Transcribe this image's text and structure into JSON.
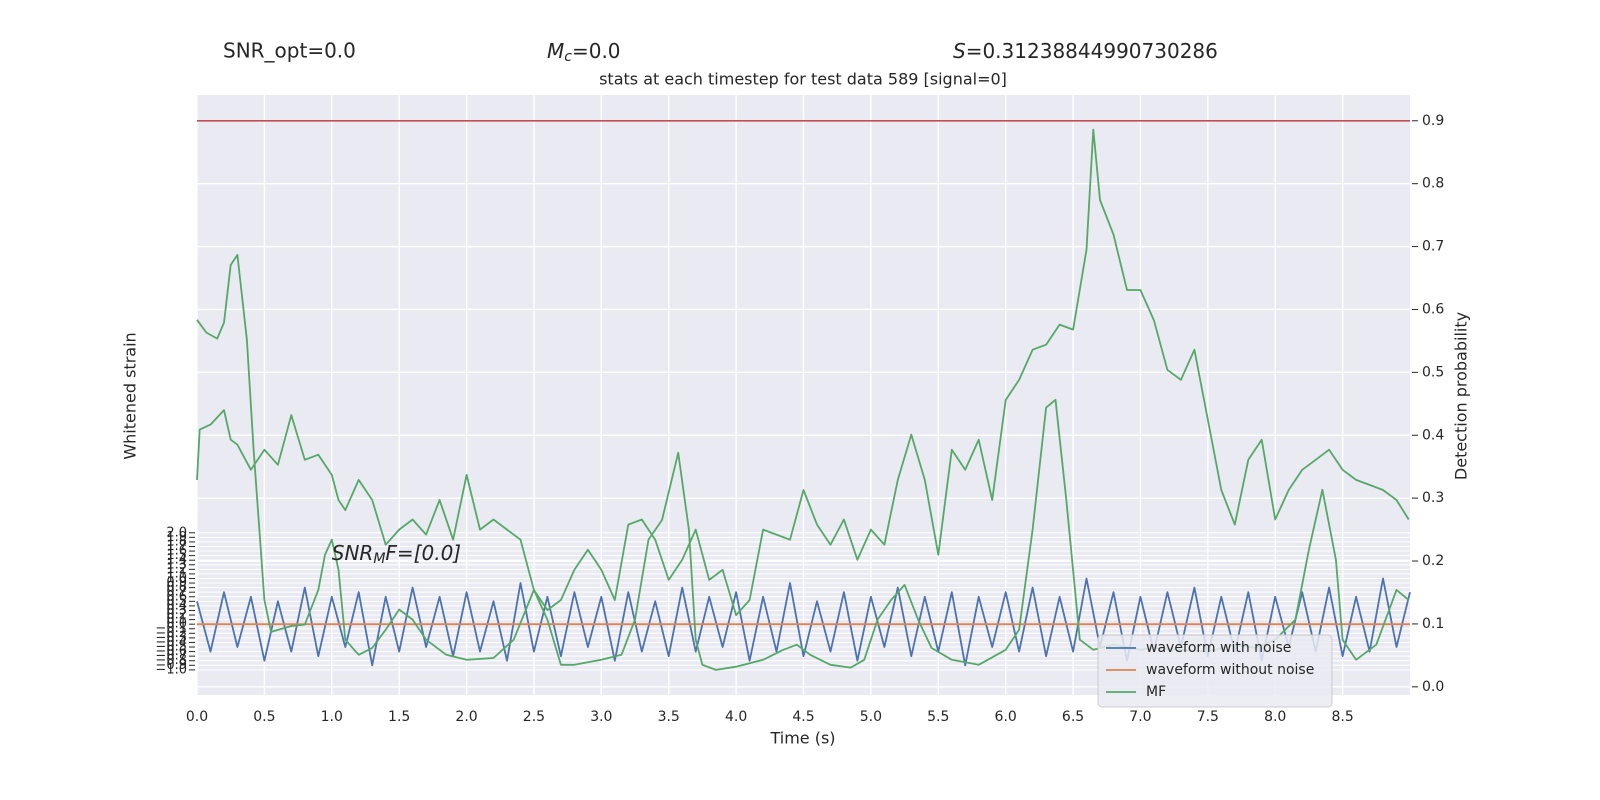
{
  "chart_data": {
    "type": "line",
    "header": [
      {
        "text": "SNR_opt=0.0"
      },
      {
        "symbol": "M",
        "sub": "c",
        "text": "=0.0"
      },
      {
        "symbol": "S",
        "text": "=0.31238844990730286"
      }
    ],
    "title": "stats at each timestep for test data 589 [signal=0]",
    "xlabel": "Time (s)",
    "ylabel": "Whitened strain",
    "y2label": "Detection probability",
    "annotation": {
      "symbol": "SNR",
      "sub": "M",
      "text": "F=[0.0]",
      "x": 1.0,
      "y": 1.54
    },
    "xlim": [
      0,
      9.0
    ],
    "ylim": [
      -1.55,
      11.58
    ],
    "y2lim": [
      -0.013,
      0.941
    ],
    "xticks": [
      {
        "value": 0,
        "label": "0.0"
      },
      0.5,
      {
        "value": 1,
        "label": "1.0"
      },
      1.5,
      {
        "value": 2,
        "label": "2.0"
      },
      2.5,
      {
        "value": 3,
        "label": "3.0"
      },
      3.5,
      {
        "value": 4,
        "label": "4.0"
      },
      4.5,
      {
        "value": 5,
        "label": "5.0"
      },
      5.5,
      {
        "value": 6,
        "label": "6.0"
      },
      6.5,
      {
        "value": 7,
        "label": "7.0"
      },
      7.5,
      {
        "value": 8,
        "label": "8.0"
      },
      8.5
    ],
    "yticks": [
      {
        "value": -1,
        "label": "−1.0"
      },
      {
        "value": -0.9,
        "label": "−0.9"
      },
      {
        "value": -0.8,
        "label": "−0.8"
      },
      {
        "value": -0.7,
        "label": "−0.7"
      },
      {
        "value": -0.6,
        "label": "−0.6"
      },
      {
        "value": -0.5,
        "label": "−0.5"
      },
      {
        "value": -0.4,
        "label": "−0.4"
      },
      {
        "value": -0.3,
        "label": "−0.3"
      },
      {
        "value": -0.2,
        "label": "−0.2"
      },
      {
        "value": -0.1,
        "label": "−0.1"
      },
      {
        "value": 0,
        "label": "0.0"
      },
      0.1,
      0.2,
      0.3,
      0.4,
      0.5,
      0.6,
      0.7,
      0.8,
      0.9,
      {
        "value": 1,
        "label": "1.0"
      },
      1.1,
      1.2,
      1.3,
      1.4,
      1.5,
      1.6,
      1.7,
      1.8,
      1.9,
      {
        "value": 2,
        "label": "2.0"
      }
    ],
    "y2ticks": [
      {
        "value": 0,
        "label": "0.0"
      },
      0.1,
      0.2,
      0.3,
      0.4,
      0.5,
      0.6,
      0.7,
      0.8,
      0.9
    ],
    "grid": true,
    "legend": "lower right",
    "series": [
      {
        "name": "waveform with noise",
        "color": "#4c72b0",
        "x": [
          0,
          0.1,
          0.2,
          0.3,
          0.4,
          0.5,
          0.6,
          0.7,
          0.8,
          0.9,
          1,
          1.1,
          1.2,
          1.3,
          1.4,
          1.5,
          1.6,
          1.7,
          1.8,
          1.9,
          2,
          2.1,
          2.2,
          2.3,
          2.4,
          2.5,
          2.6,
          2.7,
          2.8,
          2.9,
          3,
          3.1,
          3.2,
          3.3,
          3.4,
          3.5,
          3.6,
          3.7,
          3.8,
          3.9,
          4,
          4.1,
          4.2,
          4.3,
          4.4,
          4.5,
          4.6,
          4.7,
          4.8,
          4.9,
          5,
          5.1,
          5.2,
          5.3,
          5.4,
          5.5,
          5.6,
          5.7,
          5.8,
          5.9,
          6,
          6.1,
          6.2,
          6.3,
          6.4,
          6.5,
          6.6,
          6.7,
          6.8,
          6.9,
          7,
          7.1,
          7.2,
          7.3,
          7.4,
          7.5,
          7.6,
          7.7,
          7.8,
          7.9,
          8,
          8.1,
          8.2,
          8.3,
          8.4,
          8.5,
          8.6,
          8.7,
          8.8,
          8.9,
          9
        ],
        "values": [
          0.5,
          -0.6,
          0.7,
          -0.5,
          0.6,
          -0.8,
          0.5,
          -0.6,
          0.8,
          -0.7,
          0.6,
          -0.5,
          0.7,
          -0.9,
          0.6,
          -0.6,
          0.8,
          -0.5,
          0.6,
          -0.7,
          0.7,
          -0.6,
          0.5,
          -0.8,
          0.9,
          -0.6,
          0.6,
          -0.7,
          0.7,
          -0.5,
          0.6,
          -0.8,
          0.7,
          -0.6,
          0.5,
          -0.7,
          0.8,
          -0.6,
          0.6,
          -0.5,
          0.7,
          -0.8,
          0.6,
          -0.6,
          0.9,
          -0.7,
          0.5,
          -0.6,
          0.7,
          -0.8,
          0.6,
          -0.5,
          0.8,
          -0.7,
          0.6,
          -0.6,
          0.7,
          -0.9,
          0.6,
          -0.5,
          0.7,
          -0.6,
          0.8,
          -0.7,
          0.6,
          -0.6,
          1.0,
          -0.5,
          0.7,
          -0.8,
          0.6,
          -0.6,
          0.7,
          -0.5,
          0.8,
          -0.7,
          0.6,
          -0.6,
          0.7,
          -0.8,
          0.6,
          -0.5,
          0.7,
          -0.6,
          0.8,
          -0.7,
          0.6,
          -0.6,
          1.0,
          -0.5,
          0.7
        ]
      },
      {
        "name": "waveform without noise",
        "color": "#dd8452",
        "x": [
          0,
          9.0
        ],
        "values": [
          0,
          0
        ]
      },
      {
        "name": "MF",
        "color": "#55a868",
        "x": [
          0,
          0.07,
          0.15,
          0.2,
          0.25,
          0.3,
          0.37,
          0.42,
          0.5,
          0.55,
          0.7,
          0.8,
          0.9,
          0.95,
          1,
          1.05,
          1.1,
          1.2,
          1.3,
          1.4,
          1.5,
          1.6,
          1.7,
          1.85,
          2,
          2.2,
          2.35,
          2.5,
          2.6,
          2.7,
          2.8,
          3,
          3.15,
          3.25,
          3.35,
          3.45,
          3.57,
          3.65,
          3.7,
          3.75,
          3.85,
          4,
          4.2,
          4.35,
          4.45,
          4.55,
          4.7,
          4.85,
          4.95,
          5.05,
          5.15,
          5.25,
          5.35,
          5.45,
          5.6,
          5.8,
          6,
          6.1,
          6.2,
          6.3,
          6.37,
          6.45,
          6.55,
          6.65,
          6.8,
          7,
          7.1,
          7.3,
          7.5,
          7.7,
          7.85,
          8,
          8.15,
          8.25,
          8.35,
          8.45,
          8.5,
          8.6,
          8.75,
          8.9,
          8.99
        ],
        "values": [
          6.66,
          6.38,
          6.25,
          6.6,
          7.86,
          8.08,
          6.22,
          3.82,
          0.53,
          -0.17,
          -0.04,
          -0.01,
          0.75,
          1.52,
          1.85,
          1.19,
          -0.34,
          -0.67,
          -0.52,
          -0.12,
          0.32,
          0.1,
          -0.34,
          -0.67,
          -0.78,
          -0.74,
          -0.34,
          0.75,
          0.1,
          -0.89,
          -0.89,
          -0.78,
          -0.67,
          0.1,
          1.85,
          2.28,
          3.75,
          2.07,
          -0.34,
          -0.89,
          -1.0,
          -0.93,
          -0.78,
          -0.56,
          -0.45,
          -0.67,
          -0.89,
          -0.95,
          -0.78,
          0.1,
          0.53,
          0.86,
          0.1,
          -0.52,
          -0.78,
          -0.89,
          -0.56,
          -0.12,
          2.07,
          4.74,
          4.91,
          2.72,
          -0.34,
          -0.56,
          -0.45,
          -0.56,
          -0.52,
          -0.56,
          -0.6,
          -0.45,
          -0.52,
          -0.34,
          0.1,
          1.63,
          2.94,
          1.41,
          -0.34,
          -0.78,
          -0.45,
          0.75,
          0.53
        ]
      }
    ],
    "probability": {
      "color": "#55a868",
      "axis": "y2",
      "x": [
        0,
        0.02,
        0.1,
        0.2,
        0.25,
        0.3,
        0.4,
        0.5,
        0.6,
        0.7,
        0.8,
        0.9,
        1,
        1.05,
        1.1,
        1.2,
        1.3,
        1.4,
        1.5,
        1.6,
        1.7,
        1.8,
        1.9,
        2,
        2.1,
        2.2,
        2.3,
        2.4,
        2.5,
        2.6,
        2.7,
        2.8,
        2.9,
        3,
        3.1,
        3.2,
        3.3,
        3.4,
        3.5,
        3.6,
        3.7,
        3.8,
        3.9,
        4,
        4.1,
        4.2,
        4.3,
        4.4,
        4.5,
        4.6,
        4.7,
        4.8,
        4.9,
        5,
        5.1,
        5.2,
        5.3,
        5.4,
        5.5,
        5.6,
        5.7,
        5.8,
        5.9,
        6,
        6.1,
        6.2,
        6.3,
        6.4,
        6.5,
        6.6,
        6.65,
        6.7,
        6.8,
        6.9,
        7,
        7.1,
        7.2,
        7.3,
        7.4,
        7.5,
        7.6,
        7.7,
        7.8,
        7.9,
        8,
        8.1,
        8.2,
        8.3,
        8.4,
        8.5,
        8.6,
        8.7,
        8.8,
        8.9,
        8.99
      ],
      "values": [
        0.329,
        0.409,
        0.417,
        0.44,
        0.393,
        0.385,
        0.345,
        0.377,
        0.353,
        0.432,
        0.361,
        0.369,
        0.337,
        0.297,
        0.281,
        0.329,
        0.297,
        0.226,
        0.25,
        0.266,
        0.242,
        0.297,
        0.234,
        0.337,
        0.25,
        0.266,
        0.25,
        0.234,
        0.154,
        0.122,
        0.138,
        0.186,
        0.218,
        0.186,
        0.138,
        0.258,
        0.266,
        0.234,
        0.17,
        0.202,
        0.25,
        0.17,
        0.186,
        0.114,
        0.138,
        0.25,
        0.242,
        0.234,
        0.313,
        0.258,
        0.226,
        0.266,
        0.202,
        0.25,
        0.226,
        0.329,
        0.401,
        0.329,
        0.21,
        0.377,
        0.345,
        0.393,
        0.297,
        0.456,
        0.488,
        0.536,
        0.544,
        0.576,
        0.568,
        0.695,
        0.886,
        0.774,
        0.719,
        0.631,
        0.631,
        0.583,
        0.504,
        0.488,
        0.536,
        0.425,
        0.313,
        0.258,
        0.361,
        0.393,
        0.266,
        0.313,
        0.345,
        0.361,
        0.377,
        0.345,
        0.329,
        0.321,
        0.313,
        0.297,
        0.266
      ]
    },
    "threshold": {
      "value": 0.9,
      "color": "#c44e52",
      "axis": "y2"
    }
  }
}
